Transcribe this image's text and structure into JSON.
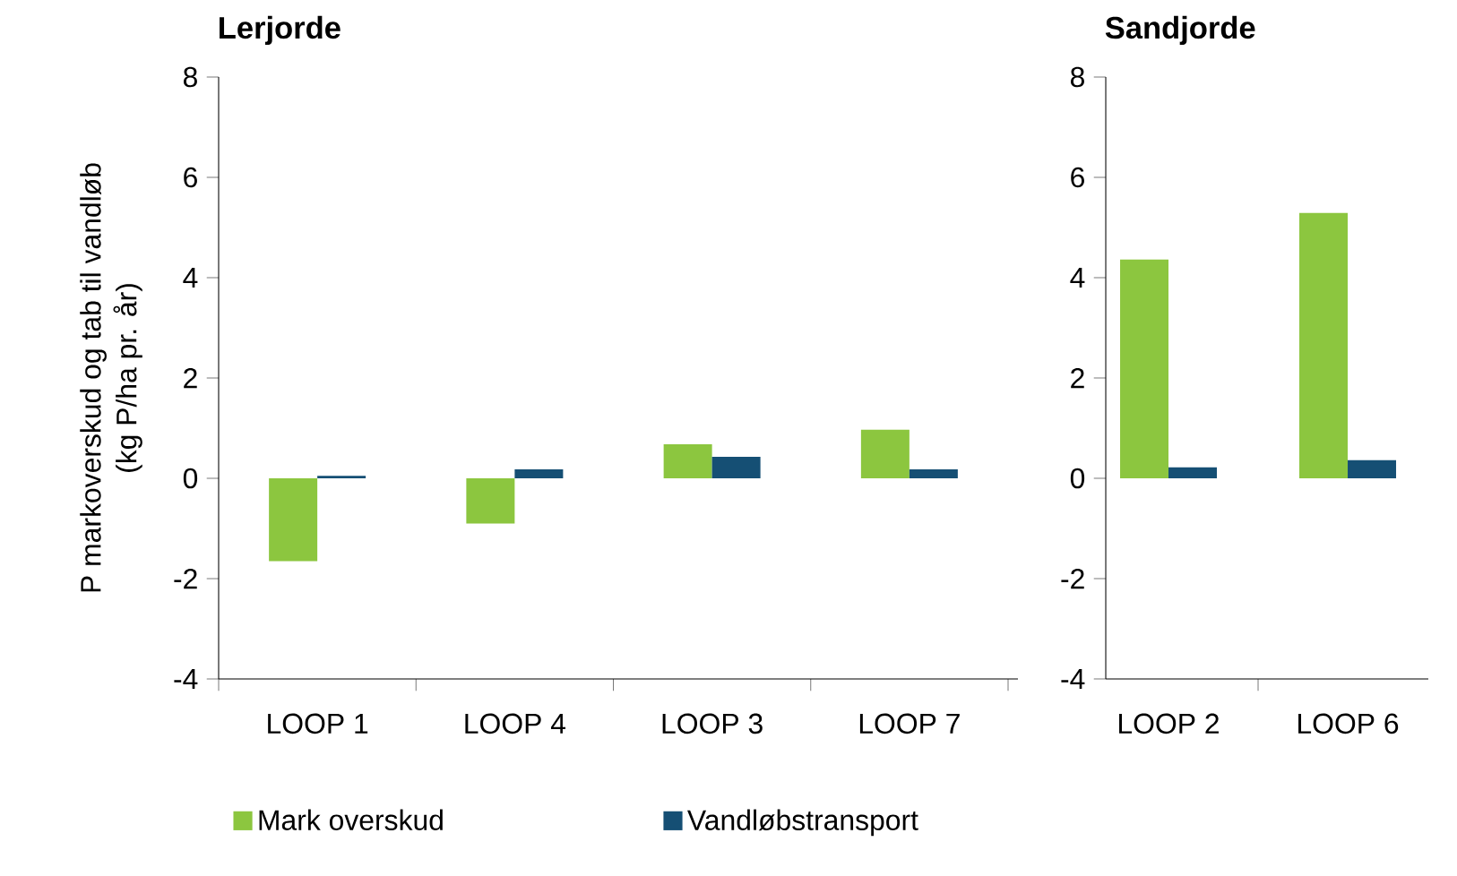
{
  "chart_data": [
    {
      "type": "bar",
      "title": "Lerjorde",
      "ylabel": "P markoverskud og tab til vandløb\n(kg P/ha pr. år)",
      "categories": [
        "LOOP 1",
        "LOOP 4",
        "LOOP 3",
        "LOOP 7"
      ],
      "ylim": [
        -4,
        8
      ],
      "yticks": [
        -4,
        -2,
        0,
        2,
        4,
        6,
        8
      ],
      "legend": "bottom",
      "series": [
        {
          "name": "Mark overskud",
          "color": "#8cc63f",
          "values": [
            -1.65,
            -0.9,
            0.68,
            0.97
          ]
        },
        {
          "name": "Vandløbstransport",
          "color": "#154f74",
          "values": [
            0.05,
            0.18,
            0.43,
            0.18
          ]
        }
      ]
    },
    {
      "type": "bar",
      "title": "Sandjorde",
      "categories": [
        "LOOP 2",
        "LOOP 6"
      ],
      "ylim": [
        -4,
        8
      ],
      "yticks": [
        -4,
        -2,
        0,
        2,
        4,
        6,
        8
      ],
      "series": [
        {
          "color": "#8cc63f",
          "values": [
            4.36,
            5.29
          ]
        },
        {
          "color": "#154f74",
          "values": [
            0.22,
            0.36
          ]
        }
      ]
    }
  ]
}
